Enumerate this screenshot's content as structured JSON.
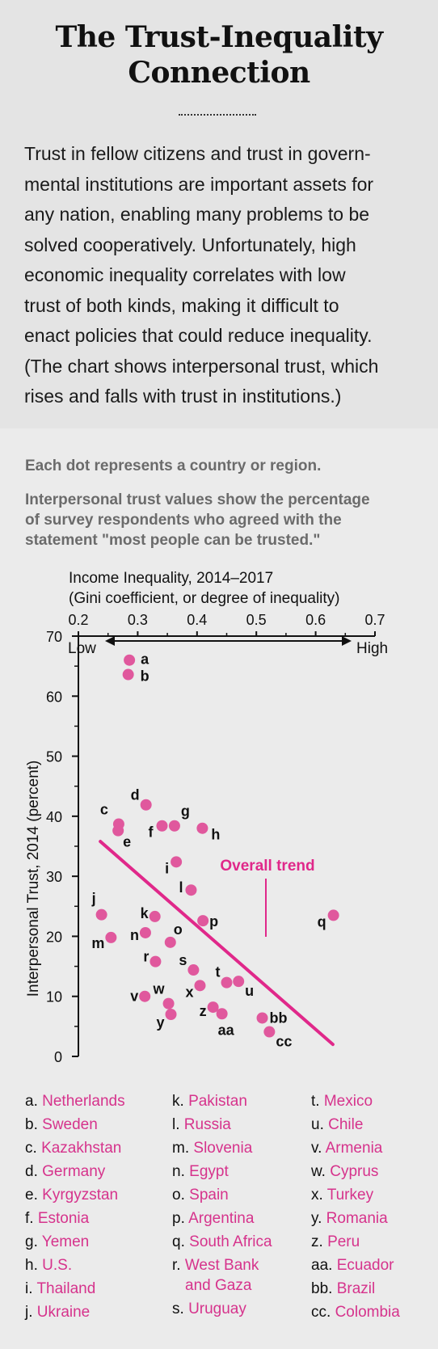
{
  "header": {
    "title_lines": [
      "The Trust-Inequality",
      "Connection"
    ],
    "intro_lines": [
      "Trust in fellow citizens and trust in govern-",
      "mental institutions are important assets for",
      "any nation, enabling many problems to be",
      "solved cooperatively. Unfortunately, high",
      "economic inequality correlates with low",
      "trust of both kinds, making it difficult to",
      "enact policies that could reduce inequality.",
      "(The chart shows interpersonal trust, which",
      "rises and falls with trust in institutions.)"
    ]
  },
  "notes": {
    "note1_lines": [
      "Each dot represents a country or region."
    ],
    "note2_lines": [
      "Interpersonal trust values show the percentage",
      "of survey respondents who agreed with the",
      "statement \"most people can be trusted.\""
    ]
  },
  "chart_data": {
    "type": "scatter",
    "xlabel_lines": [
      "Income Inequality, 2014–2017",
      "(Gini coefficient, or degree of inequality)"
    ],
    "x_low_label": "Low",
    "x_high_label": "High",
    "ylabel": "Interpersonal Trust, 2014 (percent)",
    "xlim": [
      0.2,
      0.7
    ],
    "ylim": [
      0,
      70
    ],
    "xticks": [
      "0.2",
      "0.3",
      "0.4",
      "0.5",
      "0.6",
      "0.7"
    ],
    "yticks": [
      "0",
      "10",
      "20",
      "30",
      "40",
      "50",
      "60",
      "70"
    ],
    "grid": false,
    "trend_label": "Overall trend",
    "trend_line": [
      [
        0.237,
        35.8
      ],
      [
        0.629,
        2.0
      ]
    ],
    "point_color": "#e0589d",
    "accent_color": "#e0288a",
    "points": [
      {
        "id": "a",
        "x": 0.286,
        "y": 66.0
      },
      {
        "id": "b",
        "x": 0.284,
        "y": 63.6
      },
      {
        "id": "c",
        "x": 0.268,
        "y": 38.7
      },
      {
        "id": "d",
        "x": 0.314,
        "y": 41.9
      },
      {
        "id": "e",
        "x": 0.267,
        "y": 37.6
      },
      {
        "id": "f",
        "x": 0.341,
        "y": 38.4
      },
      {
        "id": "g",
        "x": 0.362,
        "y": 38.4
      },
      {
        "id": "h",
        "x": 0.409,
        "y": 38.0
      },
      {
        "id": "i",
        "x": 0.365,
        "y": 32.4
      },
      {
        "id": "j",
        "x": 0.239,
        "y": 23.6
      },
      {
        "id": "k",
        "x": 0.329,
        "y": 23.3
      },
      {
        "id": "l",
        "x": 0.39,
        "y": 27.7
      },
      {
        "id": "m",
        "x": 0.255,
        "y": 19.8
      },
      {
        "id": "n",
        "x": 0.313,
        "y": 20.6
      },
      {
        "id": "o",
        "x": 0.355,
        "y": 19.0
      },
      {
        "id": "p",
        "x": 0.41,
        "y": 22.6
      },
      {
        "id": "q",
        "x": 0.63,
        "y": 23.5
      },
      {
        "id": "r",
        "x": 0.33,
        "y": 15.8
      },
      {
        "id": "s",
        "x": 0.394,
        "y": 14.4
      },
      {
        "id": "t",
        "x": 0.45,
        "y": 12.3
      },
      {
        "id": "u",
        "x": 0.47,
        "y": 12.5
      },
      {
        "id": "v",
        "x": 0.312,
        "y": 10.0
      },
      {
        "id": "w",
        "x": 0.352,
        "y": 8.8
      },
      {
        "id": "x",
        "x": 0.405,
        "y": 11.8
      },
      {
        "id": "y",
        "x": 0.356,
        "y": 7.0
      },
      {
        "id": "z",
        "x": 0.427,
        "y": 8.2
      },
      {
        "id": "aa",
        "x": 0.442,
        "y": 7.1
      },
      {
        "id": "bb",
        "x": 0.51,
        "y": 6.4
      },
      {
        "id": "cc",
        "x": 0.522,
        "y": 4.1
      }
    ]
  },
  "legend": {
    "col1": [
      {
        "key": "a.",
        "name": "Netherlands"
      },
      {
        "key": "b.",
        "name": "Sweden"
      },
      {
        "key": "c.",
        "name": "Kazakhstan"
      },
      {
        "key": "d.",
        "name": "Germany"
      },
      {
        "key": "e.",
        "name": "Kyrgyzstan"
      },
      {
        "key": "f.",
        "name": "Estonia"
      },
      {
        "key": "g.",
        "name": "Yemen"
      },
      {
        "key": "h.",
        "name": "U.S."
      },
      {
        "key": "i.",
        "name": "Thailand"
      },
      {
        "key": "j.",
        "name": "Ukraine"
      }
    ],
    "col2": [
      {
        "key": "k.",
        "name": "Pakistan"
      },
      {
        "key": "l.",
        "name": "Russia"
      },
      {
        "key": "m.",
        "name": "Slovenia"
      },
      {
        "key": "n.",
        "name": "Egypt"
      },
      {
        "key": "o.",
        "name": "Spain"
      },
      {
        "key": "p.",
        "name": "Argentina"
      },
      {
        "key": "q.",
        "name": "South Africa"
      },
      {
        "key": "r.",
        "name": "West Bank",
        "name2": "and Gaza"
      },
      {
        "key": "s.",
        "name": "Uruguay"
      }
    ],
    "col3": [
      {
        "key": "t.",
        "name": "Mexico"
      },
      {
        "key": "u.",
        "name": "Chile"
      },
      {
        "key": "v.",
        "name": "Armenia"
      },
      {
        "key": "w.",
        "name": "Cyprus"
      },
      {
        "key": "x.",
        "name": "Turkey"
      },
      {
        "key": "y.",
        "name": "Romania"
      },
      {
        "key": "z.",
        "name": "Peru"
      },
      {
        "key": "aa.",
        "name": "Ecuador"
      },
      {
        "key": "bb.",
        "name": "Brazil"
      },
      {
        "key": "cc.",
        "name": "Colombia"
      }
    ]
  }
}
